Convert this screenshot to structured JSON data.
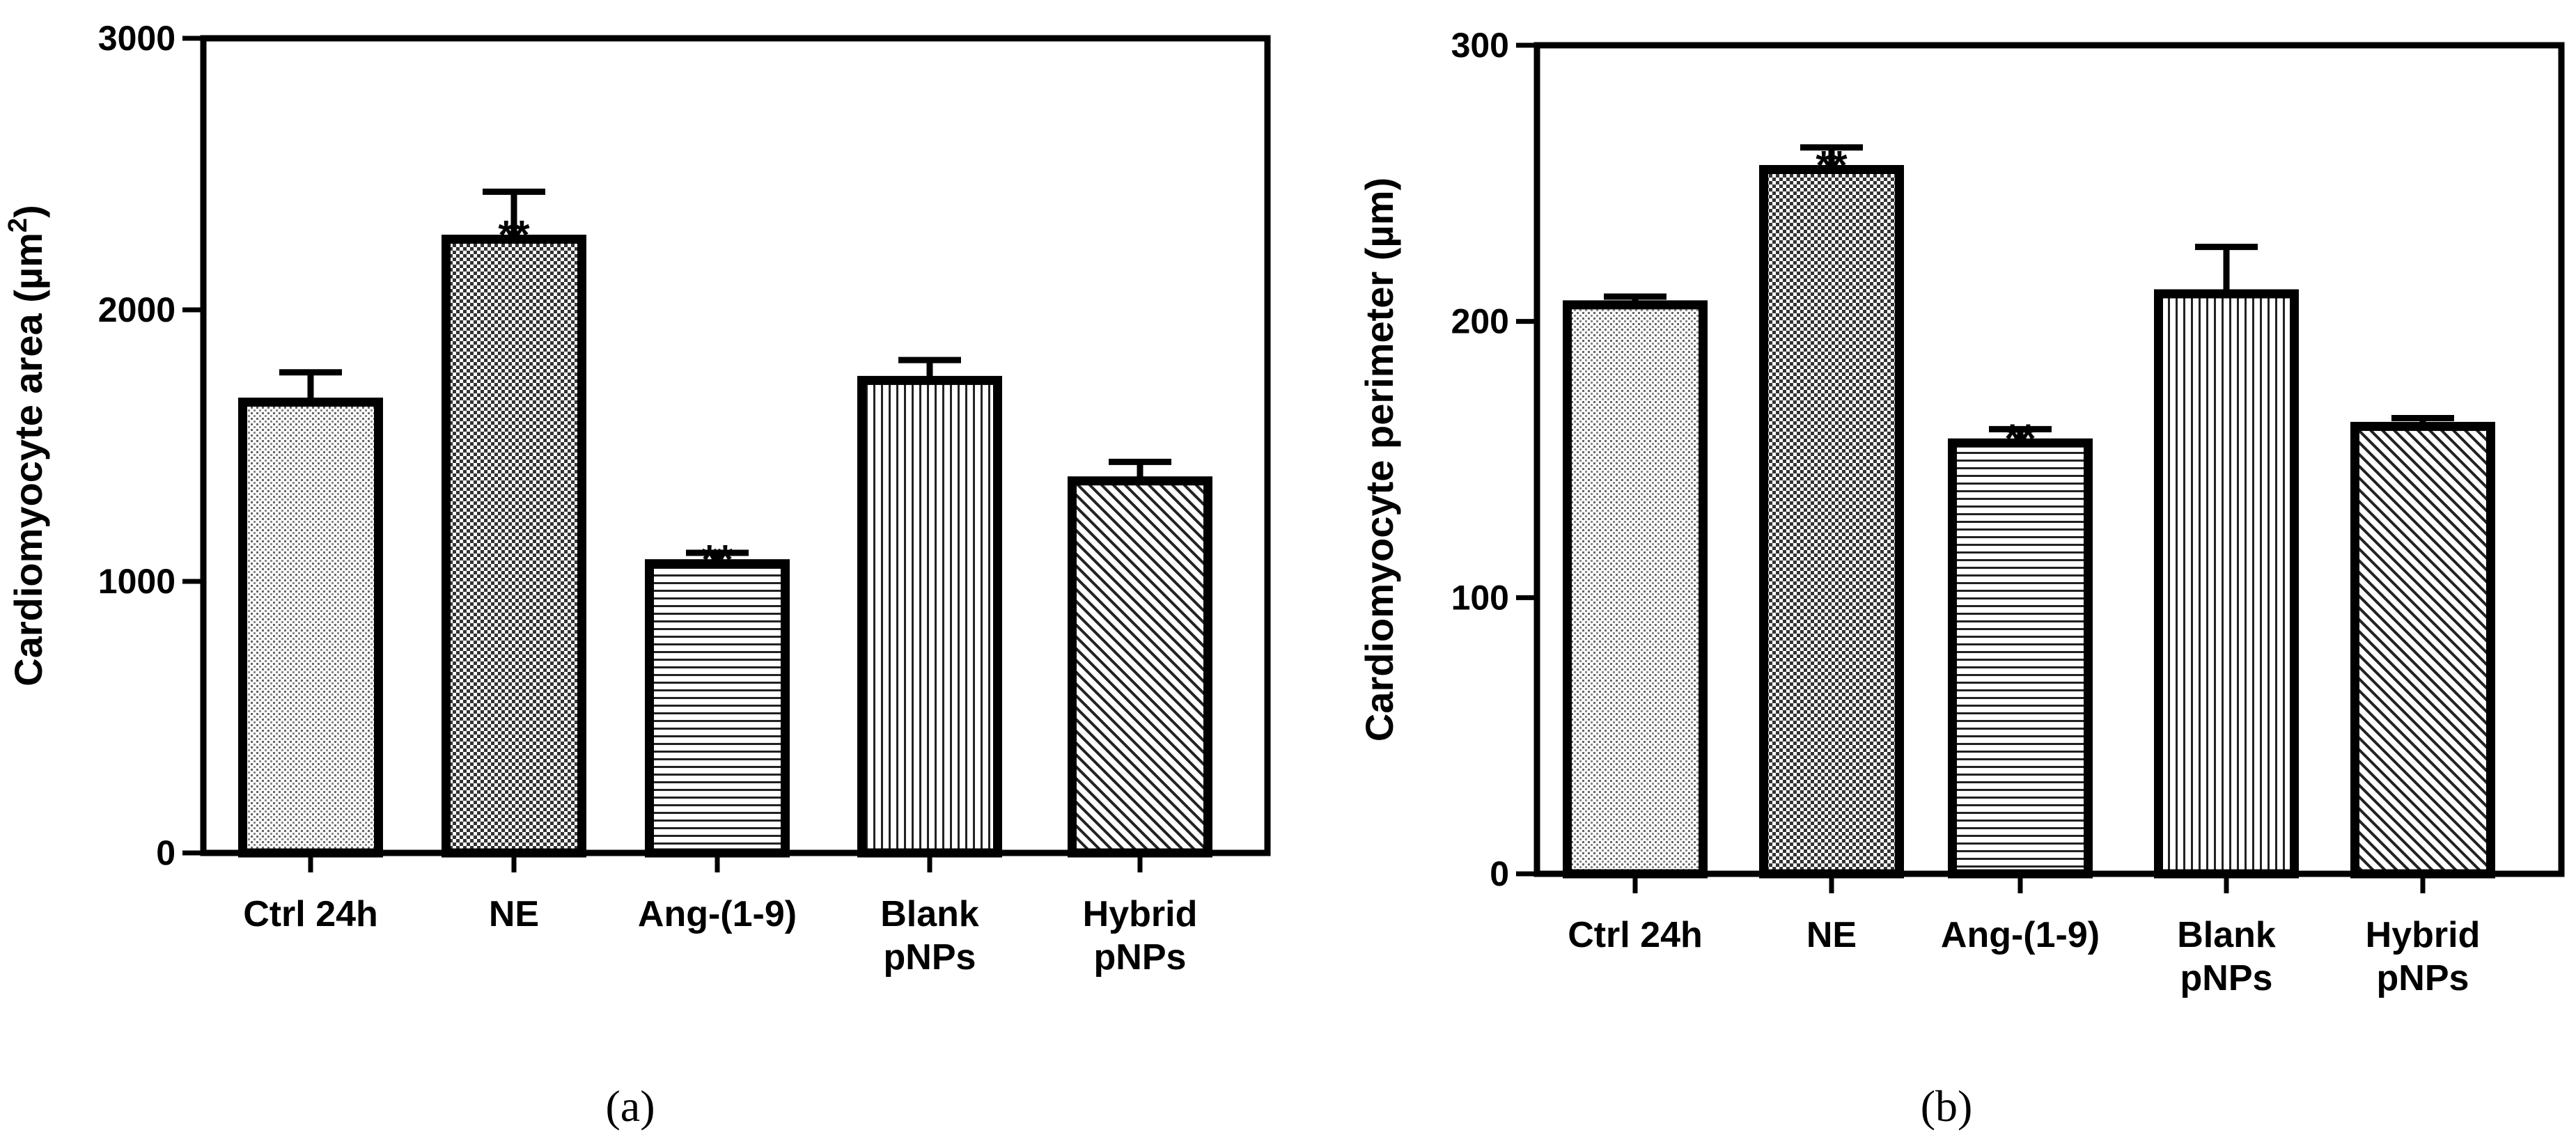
{
  "chart_data": [
    {
      "type": "bar",
      "panel_label": "(a)",
      "ylabel": "Cardiomyocyte area (µm²)",
      "ylabel_main": "Cardiomyocyte area (µm",
      "ylabel_sup": "2",
      "ylabel_end": ")",
      "ylim": [
        0,
        3000
      ],
      "yticks": [
        0,
        1000,
        2000,
        3000
      ],
      "categories": [
        [
          "Ctrl 24h"
        ],
        [
          "NE"
        ],
        [
          "Ang-(1-9)"
        ],
        [
          "Blank",
          "pNPs"
        ],
        [
          "Hybrid",
          "pNPs"
        ]
      ],
      "values": [
        1660,
        2260,
        1065,
        1740,
        1370
      ],
      "errors": [
        110,
        175,
        40,
        75,
        70
      ],
      "significance": [
        "",
        "**",
        "**",
        "",
        ""
      ],
      "patterns": [
        "dots-fine",
        "checker",
        "horizontal",
        "vertical",
        "diagonal"
      ]
    },
    {
      "type": "bar",
      "panel_label": "(b)",
      "ylabel": "Cardiomyocyte perimeter (µm)",
      "ylabel_main": "Cardiomyocyte perimeter (µm)",
      "ylabel_sup": "",
      "ylabel_end": "",
      "ylim": [
        0,
        300
      ],
      "yticks": [
        0,
        100,
        200,
        300
      ],
      "categories": [
        [
          "Ctrl 24h"
        ],
        [
          "NE"
        ],
        [
          "Ang-(1-9)"
        ],
        [
          "Blank",
          "pNPs"
        ],
        [
          "Hybrid",
          "pNPs"
        ]
      ],
      "values": [
        206,
        255,
        156,
        210,
        162
      ],
      "errors": [
        3,
        8,
        5,
        17,
        3
      ],
      "significance": [
        "",
        "**",
        "**",
        "",
        ""
      ],
      "patterns": [
        "dots-fine",
        "checker",
        "horizontal",
        "vertical",
        "diagonal"
      ]
    }
  ]
}
